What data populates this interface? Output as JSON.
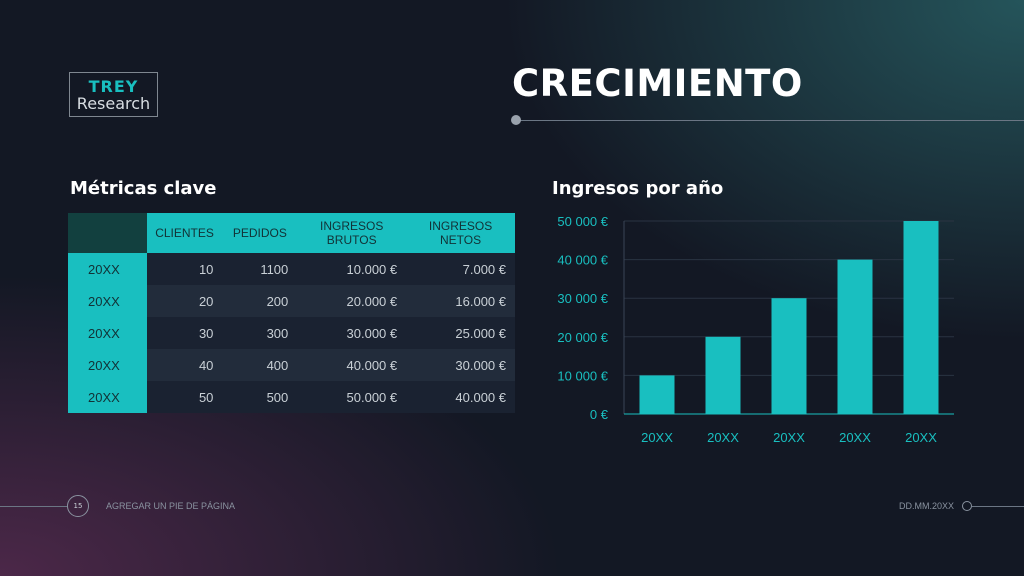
{
  "logo": {
    "top": "TREY",
    "bottom": "Research"
  },
  "title": "CRECIMIENTO",
  "metrics": {
    "heading": "Métricas clave",
    "columns": [
      "CLIENTES",
      "PEDIDOS",
      "INGRESOS BRUTOS",
      "INGRESOS NETOS"
    ],
    "rows": [
      {
        "label": "20XX",
        "values": [
          "10",
          "1100",
          "10.000 €",
          "7.000 €"
        ]
      },
      {
        "label": "20XX",
        "values": [
          "20",
          "200",
          "20.000 €",
          "16.000 €"
        ]
      },
      {
        "label": "20XX",
        "values": [
          "30",
          "300",
          "30.000 €",
          "25.000 €"
        ]
      },
      {
        "label": "20XX",
        "values": [
          "40",
          "400",
          "40.000 €",
          "30.000 €"
        ]
      },
      {
        "label": "20XX",
        "values": [
          "50",
          "500",
          "50.000 €",
          "40.000 €"
        ]
      }
    ]
  },
  "chart_heading": "Ingresos por año",
  "chart_data": {
    "type": "bar",
    "title": "Ingresos por año",
    "categories": [
      "20XX",
      "20XX",
      "20XX",
      "20XX",
      "20XX"
    ],
    "values": [
      10000,
      20000,
      30000,
      40000,
      50000
    ],
    "ylim": [
      0,
      50000
    ],
    "yticks": [
      "0 €",
      "10 000 €",
      "20 000 €",
      "30 000 €",
      "40 000 €",
      "50 000 €"
    ],
    "grid": true,
    "bar_color": "#19bfc0"
  },
  "footer": {
    "page": "15",
    "text": "AGREGAR UN PIE DE PÁGINA",
    "date": "DD.MM.20XX"
  },
  "colors": {
    "accent": "#19bfc0",
    "background": "#131824"
  }
}
